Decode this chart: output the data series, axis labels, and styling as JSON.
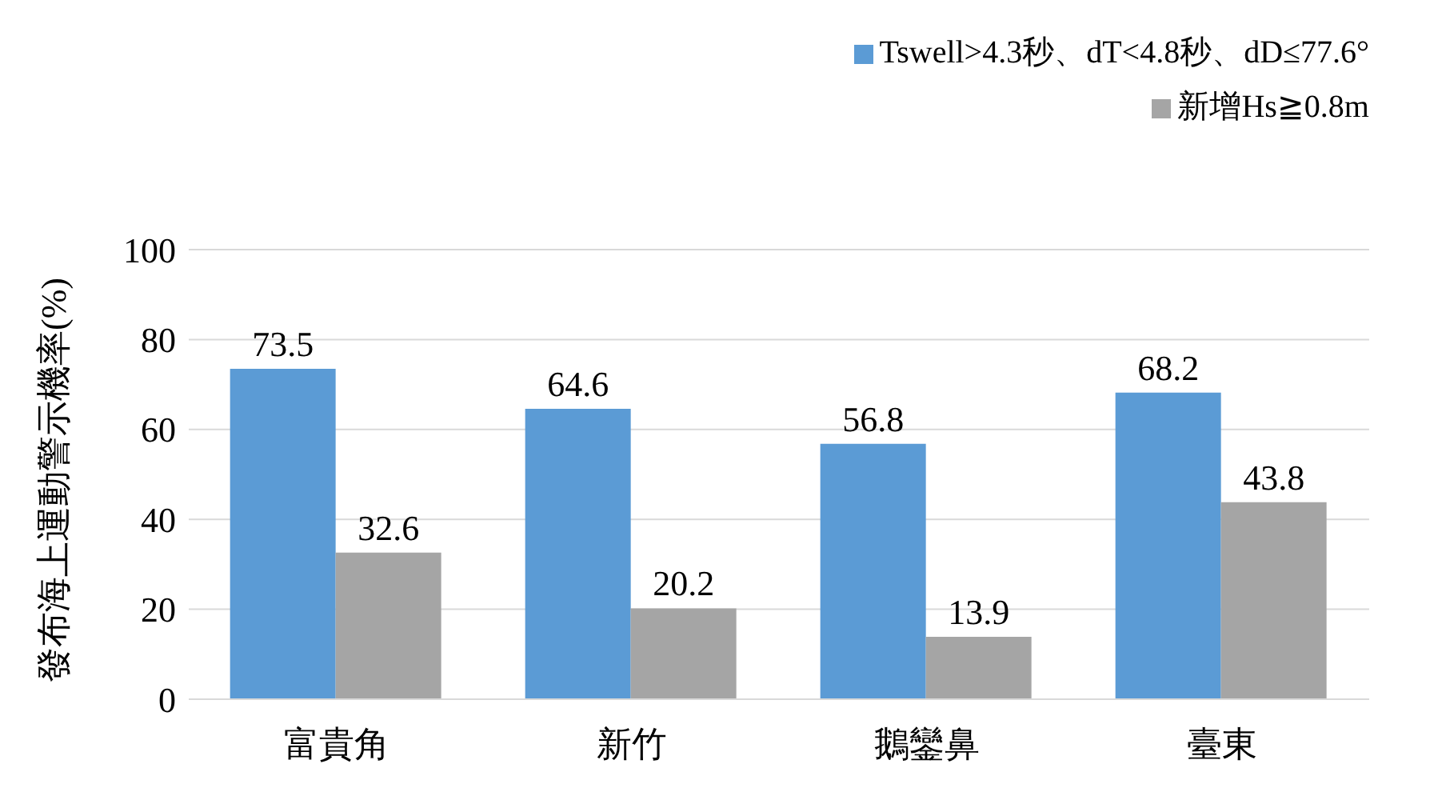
{
  "chart_data": {
    "type": "bar",
    "categories": [
      "富貴角",
      "新竹",
      "鵝鑾鼻",
      "臺東"
    ],
    "series": [
      {
        "name": "Tswell>4.3秒、dT<4.8秒、dD≤77.6°",
        "color": "#5b9bd5",
        "values": [
          73.5,
          64.6,
          56.8,
          68.2
        ]
      },
      {
        "name": "新增Hs≧0.8m",
        "color": "#a5a5a5",
        "values": [
          32.6,
          20.2,
          13.9,
          43.8
        ]
      }
    ],
    "ylabel": "發布海上運動警示機率(%)",
    "ylim": [
      0,
      100
    ],
    "yticks": [
      0,
      20,
      40,
      60,
      80,
      100
    ],
    "grid": "y",
    "legend": "top right",
    "data_labels": true
  }
}
